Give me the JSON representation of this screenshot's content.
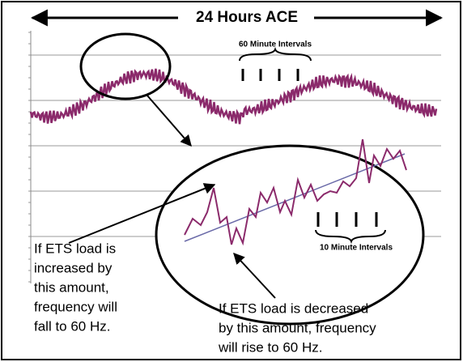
{
  "title": "24 Hours ACE",
  "labels": {
    "hour_intervals": "60 Minute Intervals",
    "minute_intervals": "10 Minute Intervals"
  },
  "annotations": [
    {
      "lines": [
        "If ETS load is",
        "increased by",
        "this amount,",
        "frequency will",
        "fall to 60 Hz."
      ]
    },
    {
      "lines": [
        "If ETS load is decreased",
        "by this amount, frequency",
        "will rise to 60 Hz."
      ]
    }
  ]
}
